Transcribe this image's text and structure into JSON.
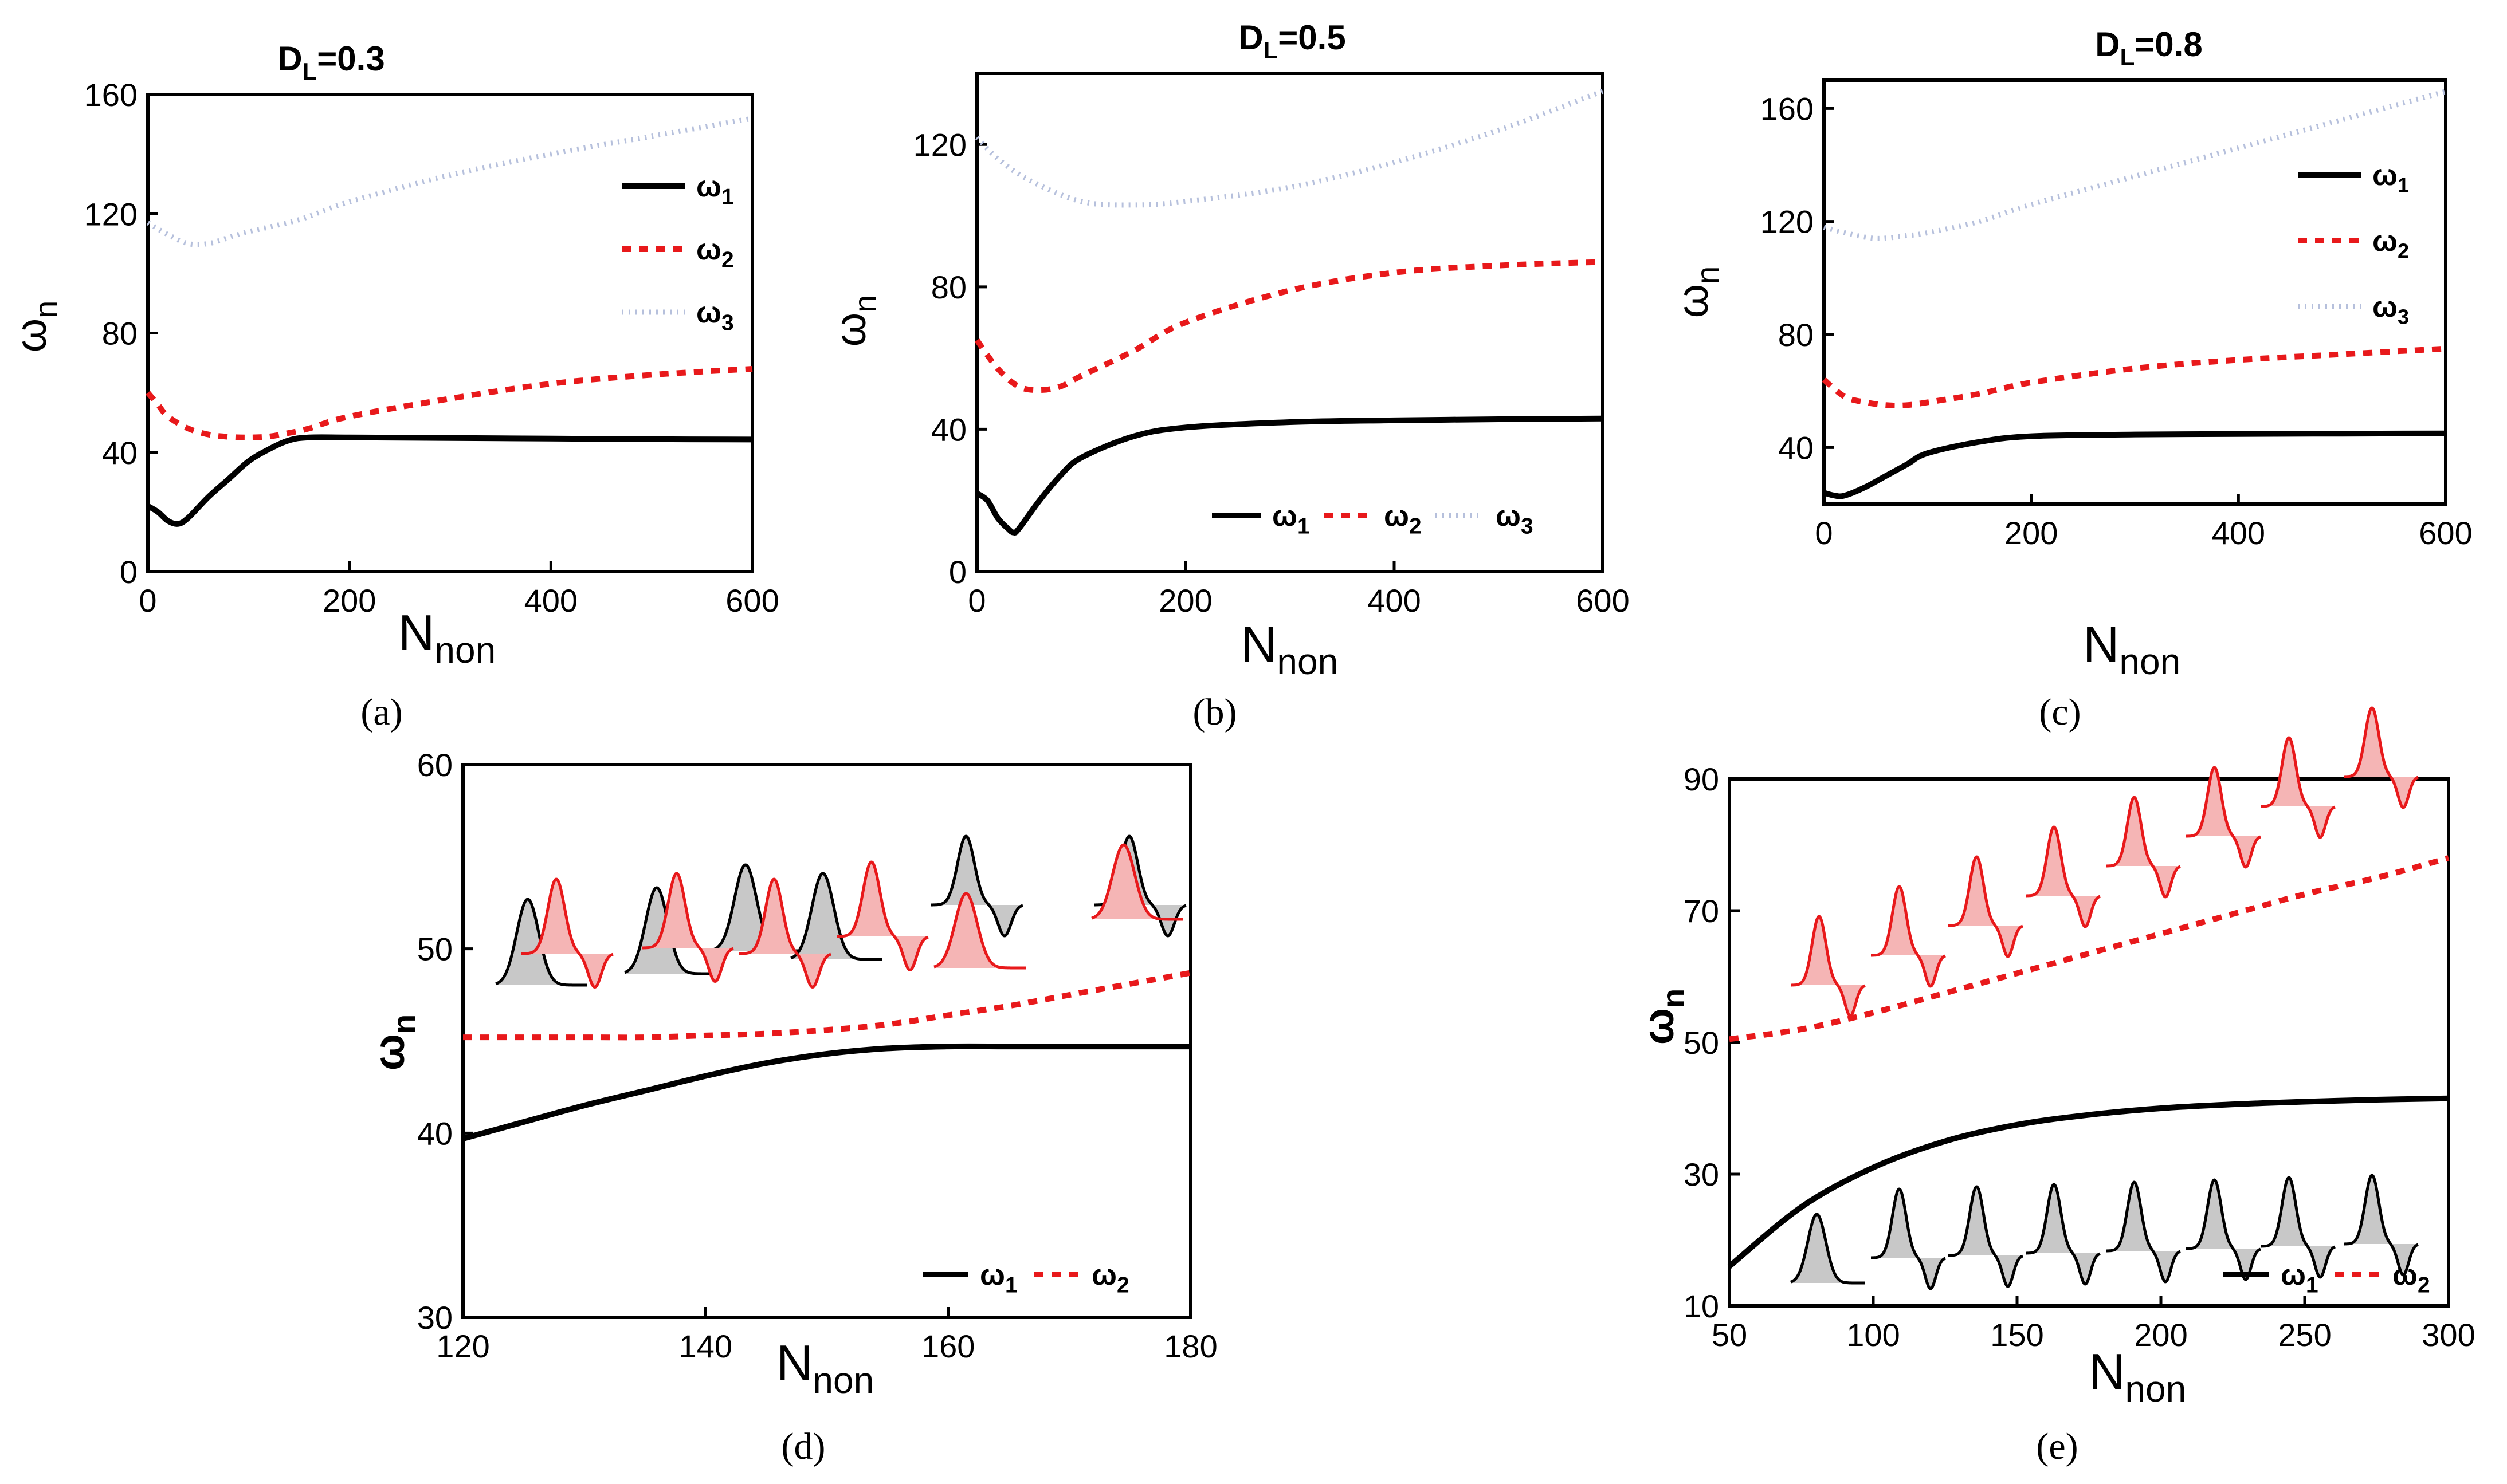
{
  "colors": {
    "w1": "#000000",
    "w2": "#e8191b",
    "w3": "#b6c0dc",
    "shape_red": "#f5b5b5",
    "shape_gray": "#c8c8c8"
  },
  "chart_data": [
    {
      "id": "a",
      "type": "line",
      "caption": "(a)",
      "title": {
        "main": "D",
        "sub": "L",
        "rest": "=0.3"
      },
      "xlabel": {
        "main": "N",
        "sub": "non"
      },
      "ylabel": {
        "main": "ω",
        "sub": "n"
      },
      "xlim": [
        0,
        600
      ],
      "ylim": [
        0,
        160
      ],
      "xticks": [
        "0",
        "200",
        "400",
        "600"
      ],
      "yticks": [
        "0",
        "40",
        "80",
        "120",
        "160"
      ],
      "legend": "right-vertical",
      "series": [
        {
          "name": "ω",
          "sub": "1",
          "style": "solid",
          "x": [
            0,
            10,
            20,
            30,
            40,
            60,
            80,
            100,
            120,
            140,
            160,
            200,
            300,
            400,
            500,
            600
          ],
          "y": [
            22,
            20,
            17,
            16,
            18,
            25,
            31,
            37,
            41,
            44,
            45,
            45,
            44.8,
            44.6,
            44.4,
            44.3
          ]
        },
        {
          "name": "ω",
          "sub": "2",
          "style": "dashed",
          "x": [
            0,
            10,
            20,
            40,
            60,
            80,
            100,
            120,
            140,
            160,
            200,
            300,
            400,
            500,
            600
          ],
          "y": [
            60,
            56,
            52,
            48,
            46,
            45.2,
            45,
            45.3,
            46.5,
            48,
            52,
            58,
            63,
            66,
            68
          ]
        },
        {
          "name": "ω",
          "sub": "3",
          "style": "dotted",
          "x": [
            0,
            20,
            40,
            60,
            80,
            100,
            150,
            200,
            300,
            400,
            500,
            600
          ],
          "y": [
            117,
            113,
            110,
            110,
            112,
            114,
            118,
            124,
            133,
            140,
            146,
            152
          ]
        }
      ]
    },
    {
      "id": "b",
      "type": "line",
      "caption": "(b)",
      "title": {
        "main": "D",
        "sub": "L",
        "rest": "=0.5"
      },
      "xlabel": {
        "main": "N",
        "sub": "non"
      },
      "ylabel": {
        "main": "ω",
        "sub": "n"
      },
      "xlim": [
        0,
        600
      ],
      "ylim": [
        0,
        140
      ],
      "xticks": [
        "0",
        "200",
        "400",
        "600"
      ],
      "yticks": [
        "0",
        "40",
        "80",
        "120"
      ],
      "legend": "bottom-right-horizontal",
      "series": [
        {
          "name": "ω",
          "sub": "1",
          "style": "solid",
          "x": [
            0,
            10,
            20,
            30,
            35,
            40,
            60,
            80,
            100,
            150,
            200,
            300,
            400,
            500,
            600
          ],
          "y": [
            22,
            20,
            15,
            12,
            11,
            12,
            20,
            27,
            32,
            38,
            40.5,
            42,
            42.5,
            42.8,
            43
          ]
        },
        {
          "name": "ω",
          "sub": "2",
          "style": "dashed",
          "x": [
            0,
            20,
            40,
            60,
            80,
            100,
            150,
            200,
            300,
            400,
            500,
            600
          ],
          "y": [
            65,
            57,
            52,
            51,
            52,
            55,
            62,
            70,
            79,
            84,
            86,
            87
          ]
        },
        {
          "name": "ω",
          "sub": "3",
          "style": "dotted",
          "x": [
            0,
            20,
            50,
            100,
            150,
            200,
            300,
            400,
            500,
            600
          ],
          "y": [
            122,
            116,
            110,
            104,
            103,
            104,
            108,
            115,
            124,
            135
          ]
        }
      ]
    },
    {
      "id": "c",
      "type": "line",
      "caption": "(c)",
      "title": {
        "main": "D",
        "sub": "L",
        "rest": "=0.8"
      },
      "xlabel": {
        "main": "N",
        "sub": "non"
      },
      "ylabel": {
        "main": "ω",
        "sub": "n"
      },
      "xlim": [
        0,
        600
      ],
      "ylim": [
        20,
        170
      ],
      "xticks": [
        "0",
        "200",
        "400",
        "600"
      ],
      "yticks": [
        "40",
        "80",
        "120",
        "160"
      ],
      "legend": "right-vertical",
      "series": [
        {
          "name": "ω",
          "sub": "1",
          "style": "solid",
          "x": [
            0,
            10,
            20,
            40,
            60,
            80,
            100,
            150,
            200,
            300,
            400,
            500,
            600
          ],
          "y": [
            24,
            23,
            23,
            26,
            30,
            34,
            38,
            42,
            44,
            44.6,
            44.8,
            44.9,
            45
          ]
        },
        {
          "name": "ω",
          "sub": "2",
          "style": "dashed",
          "x": [
            0,
            20,
            40,
            60,
            80,
            100,
            150,
            200,
            300,
            400,
            500,
            600
          ],
          "y": [
            64,
            58,
            56,
            55,
            55,
            56,
            59,
            63,
            68,
            71,
            73,
            75
          ]
        },
        {
          "name": "ω",
          "sub": "3",
          "style": "dotted",
          "x": [
            0,
            20,
            50,
            80,
            100,
            150,
            200,
            300,
            400,
            500,
            600
          ],
          "y": [
            118,
            116,
            114,
            115,
            116,
            120,
            126,
            136,
            146,
            156,
            166
          ]
        }
      ]
    },
    {
      "id": "d",
      "type": "line",
      "caption": "(d)",
      "xlabel": {
        "main": "N",
        "sub": "non"
      },
      "ylabel": {
        "main": "ω",
        "sub": "n"
      },
      "xlim": [
        120,
        180
      ],
      "ylim": [
        30,
        60
      ],
      "xticks": [
        "120",
        "140",
        "160",
        "180"
      ],
      "yticks": [
        "30",
        "40",
        "50",
        "60"
      ],
      "legend": "bottom-right-horizontal",
      "series": [
        {
          "name": "ω",
          "sub": "1",
          "style": "solid",
          "x": [
            120,
            125,
            130,
            135,
            140,
            145,
            150,
            155,
            160,
            165,
            170,
            175,
            180
          ],
          "y": [
            39.7,
            40.6,
            41.5,
            42.3,
            43.1,
            43.8,
            44.3,
            44.6,
            44.7,
            44.7,
            44.7,
            44.7,
            44.7
          ]
        },
        {
          "name": "ω",
          "sub": "2",
          "style": "dashed",
          "x": [
            120,
            125,
            130,
            135,
            140,
            145,
            150,
            155,
            160,
            165,
            170,
            175,
            180
          ],
          "y": [
            45.2,
            45.2,
            45.2,
            45.2,
            45.3,
            45.4,
            45.6,
            45.9,
            46.4,
            46.9,
            47.5,
            48.1,
            48.7
          ]
        }
      ]
    },
    {
      "id": "e",
      "type": "line",
      "caption": "(e)",
      "xlabel": {
        "main": "N",
        "sub": "non"
      },
      "ylabel": {
        "main": "ω",
        "sub": "n"
      },
      "xlim": [
        50,
        300
      ],
      "ylim": [
        10,
        90
      ],
      "xticks": [
        "50",
        "100",
        "150",
        "200",
        "250",
        "300"
      ],
      "yticks": [
        "10",
        "30",
        "50",
        "70",
        "90"
      ],
      "legend": "bottom-right-horizontal",
      "series": [
        {
          "name": "ω",
          "sub": "1",
          "style": "solid",
          "x": [
            50,
            75,
            100,
            125,
            150,
            175,
            200,
            225,
            250,
            275,
            300
          ],
          "y": [
            16,
            25,
            31,
            35,
            37.5,
            39,
            40,
            40.6,
            41,
            41.3,
            41.5
          ]
        },
        {
          "name": "ω",
          "sub": "2",
          "style": "dashed",
          "x": [
            50,
            75,
            100,
            125,
            150,
            175,
            200,
            225,
            250,
            275,
            300
          ],
          "y": [
            50.5,
            52,
            54.5,
            57.5,
            60.5,
            63.5,
            66.5,
            69.5,
            72.5,
            75,
            78
          ]
        }
      ]
    }
  ]
}
